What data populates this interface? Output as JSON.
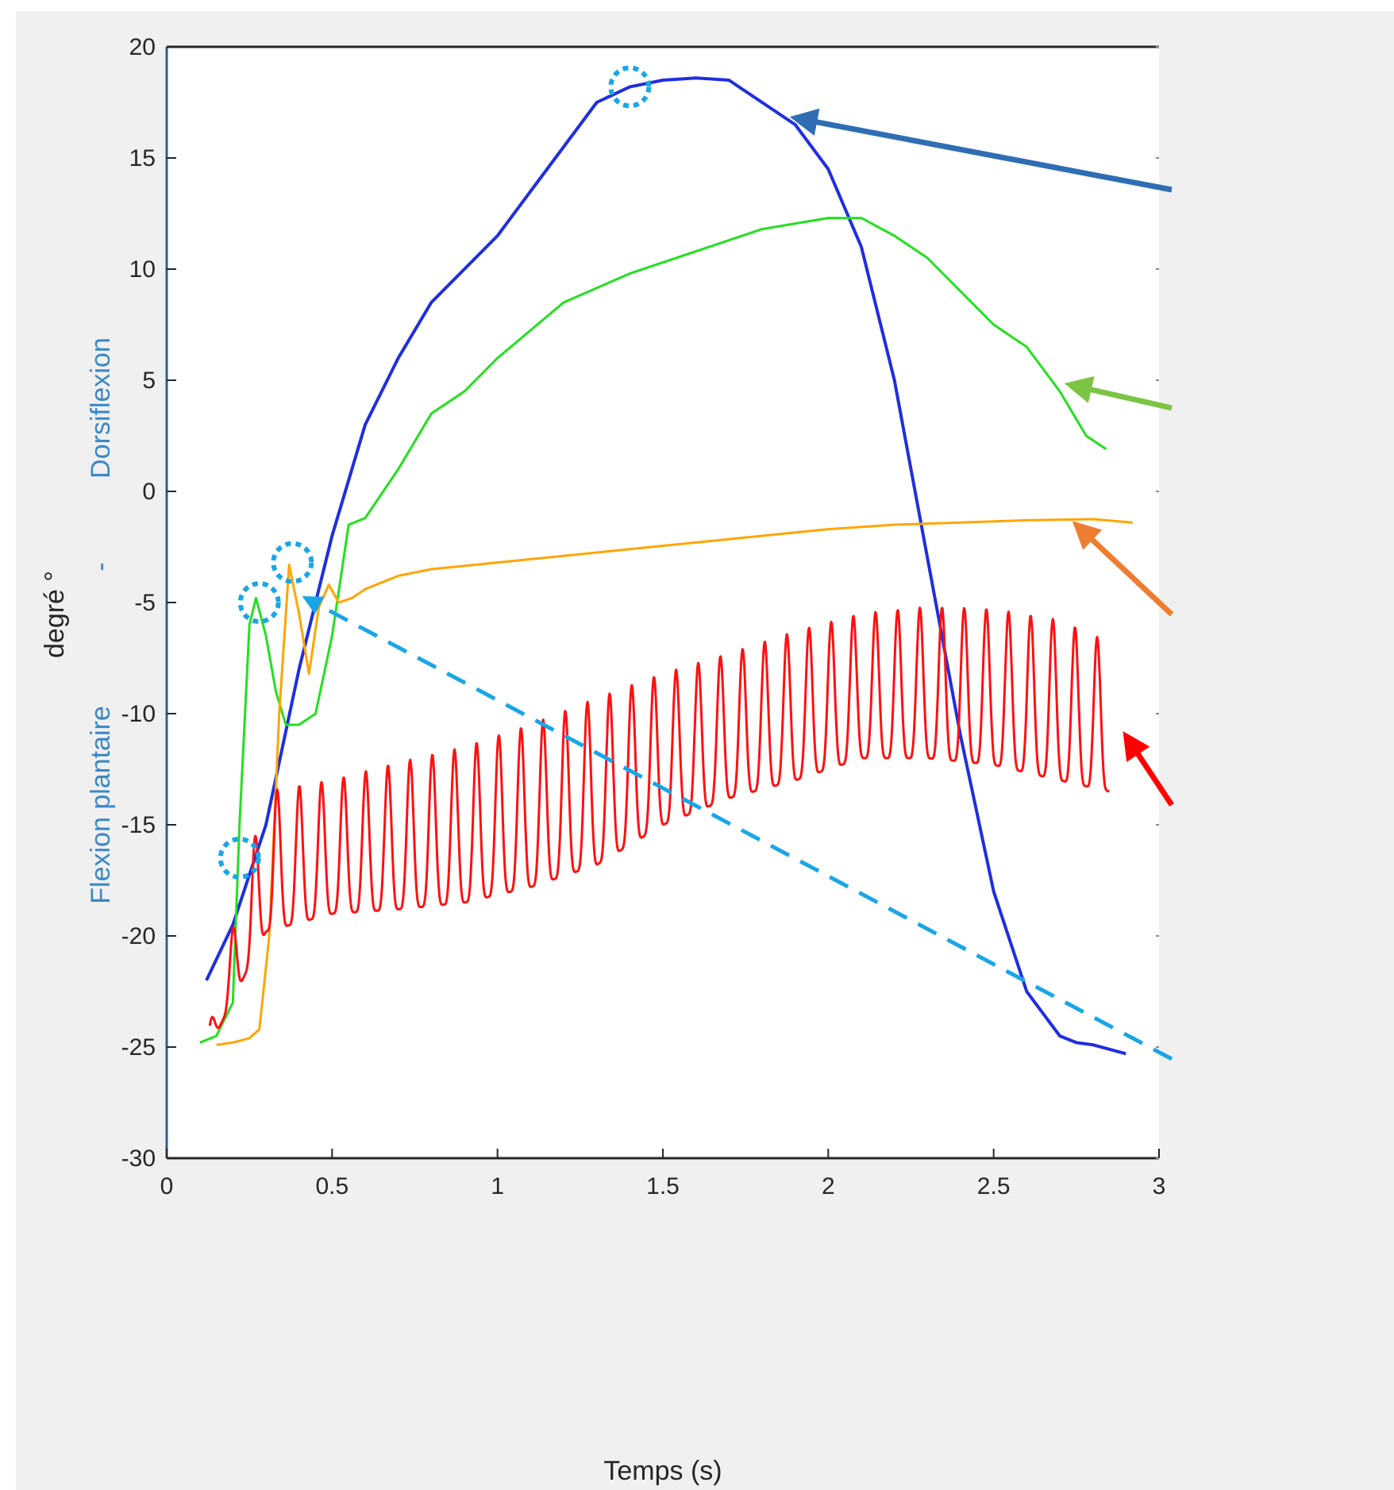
{
  "chart_data": {
    "type": "line",
    "title": "",
    "xlabel": "Temps (s)",
    "ylabel": {
      "left": "Flexion plantaire",
      "dash": "-",
      "right": "Dorsiflexion",
      "unit": "degré °"
    },
    "xlim": [
      0,
      3
    ],
    "ylim": [
      -30,
      20
    ],
    "xticks": [
      "0",
      "0.5",
      "1",
      "1.5",
      "2",
      "2.5",
      "3"
    ],
    "yticks": [
      "20",
      "15",
      "10",
      "5",
      "0",
      "-5",
      "-10",
      "-15",
      "-20",
      "-25",
      "-30"
    ],
    "grid": false,
    "series": [
      {
        "color": "#1f2ee0",
        "x": [
          0.12,
          0.2,
          0.3,
          0.4,
          0.5,
          0.6,
          0.7,
          0.8,
          0.9,
          1.0,
          1.1,
          1.2,
          1.3,
          1.4,
          1.5,
          1.6,
          1.7,
          1.8,
          1.9,
          2.0,
          2.1,
          2.2,
          2.3,
          2.4,
          2.5,
          2.6,
          2.7,
          2.75,
          2.8,
          2.9
        ],
        "y": [
          -22.0,
          -19.5,
          -15.0,
          -8.0,
          -2.0,
          3.0,
          6.0,
          8.5,
          10.0,
          11.5,
          13.5,
          15.5,
          17.5,
          18.2,
          18.5,
          18.6,
          18.5,
          17.5,
          16.5,
          14.5,
          11.0,
          5.0,
          -3.0,
          -11.0,
          -18.0,
          -22.5,
          -24.5,
          -24.8,
          -24.9,
          -25.3
        ]
      },
      {
        "color": "#22e01e",
        "x": [
          0.1,
          0.15,
          0.2,
          0.22,
          0.25,
          0.27,
          0.3,
          0.33,
          0.36,
          0.4,
          0.45,
          0.5,
          0.55,
          0.6,
          0.7,
          0.8,
          0.9,
          1.0,
          1.2,
          1.4,
          1.6,
          1.8,
          2.0,
          2.1,
          2.2,
          2.3,
          2.4,
          2.5,
          2.6,
          2.7,
          2.78,
          2.84
        ],
        "y": [
          -24.8,
          -24.5,
          -23.0,
          -15.0,
          -6.0,
          -4.8,
          -6.5,
          -9.0,
          -10.5,
          -10.5,
          -10.0,
          -6.5,
          -1.5,
          -1.2,
          1.0,
          3.5,
          4.5,
          6.0,
          8.5,
          9.8,
          10.8,
          11.8,
          12.3,
          12.3,
          11.5,
          10.5,
          9.0,
          7.5,
          6.5,
          4.5,
          2.5,
          1.9
        ]
      },
      {
        "color": "#ffa500",
        "x": [
          0.15,
          0.2,
          0.25,
          0.28,
          0.31,
          0.34,
          0.37,
          0.4,
          0.43,
          0.46,
          0.49,
          0.52,
          0.56,
          0.6,
          0.7,
          0.8,
          1.0,
          1.2,
          1.4,
          1.6,
          1.8,
          2.0,
          2.2,
          2.4,
          2.6,
          2.8,
          2.92
        ],
        "y": [
          -24.9,
          -24.8,
          -24.6,
          -24.2,
          -20.0,
          -10.0,
          -3.3,
          -5.5,
          -8.2,
          -5.2,
          -4.2,
          -5.0,
          -4.8,
          -4.4,
          -3.8,
          -3.5,
          -3.2,
          -2.9,
          -2.6,
          -2.3,
          -2.0,
          -1.7,
          -1.5,
          -1.4,
          -1.3,
          -1.25,
          -1.4
        ]
      },
      {
        "color": "#ff1010",
        "baseline_x": [
          0.13,
          0.3,
          0.5,
          0.7,
          0.9,
          1.1,
          1.3,
          1.5,
          1.7,
          1.9,
          2.1,
          2.3,
          2.5,
          2.7,
          2.85
        ],
        "baseline_min": [
          -25.0,
          -19.8,
          -19.0,
          -18.8,
          -18.5,
          -17.8,
          -16.8,
          -15.0,
          -13.8,
          -13.0,
          -12.0,
          -12.0,
          -12.3,
          -13.0,
          -13.5
        ],
        "baseline_max": [
          -24.0,
          -13.5,
          -13.0,
          -12.2,
          -11.5,
          -10.5,
          -9.3,
          -8.2,
          -7.3,
          -6.3,
          -5.5,
          -5.2,
          -5.3,
          -5.8,
          -6.8
        ],
        "x_range": [
          0.13,
          2.85
        ],
        "peak_period": 0.067
      }
    ],
    "annotations": {
      "markers": [
        {
          "x": 0.22,
          "y": -16.5
        },
        {
          "x": 0.28,
          "y": -5.0
        },
        {
          "x": 0.38,
          "y": -3.2
        },
        {
          "x": 1.4,
          "y": 18.2
        }
      ],
      "arrows": [
        {
          "color": "#2f6eb4",
          "style": "solid",
          "target": [
            1.9,
            16.8
          ]
        },
        {
          "color": "#7cc444",
          "style": "solid",
          "target": [
            2.73,
            4.8
          ]
        },
        {
          "color": "#ed7d31",
          "style": "solid",
          "target": [
            2.75,
            -1.5
          ]
        },
        {
          "color": "#ff0000",
          "style": "solid",
          "target": [
            2.9,
            -11.0
          ]
        },
        {
          "color": "#1aa6e6",
          "style": "dashed",
          "target": [
            0.42,
            -4.8
          ]
        }
      ]
    }
  }
}
